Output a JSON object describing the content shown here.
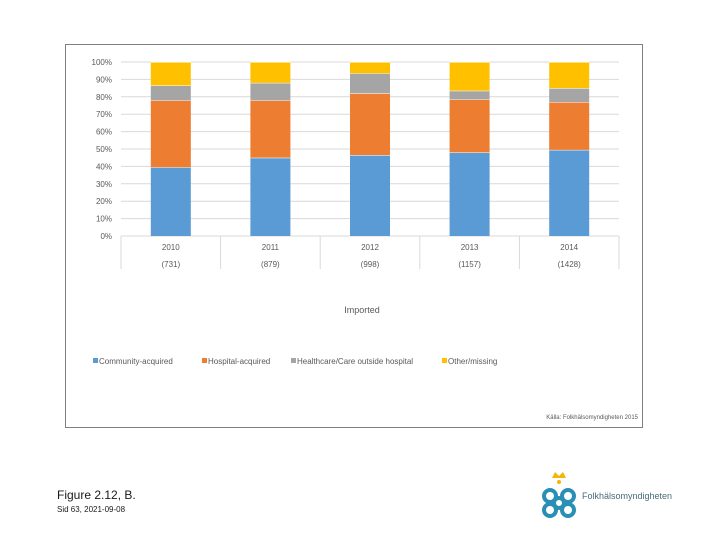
{
  "chart_data": {
    "type": "bar",
    "stacked": true,
    "percent": true,
    "title": "",
    "xlabel": "Imported",
    "ylabel": "",
    "ylim": [
      0,
      100
    ],
    "y_ticks": [
      "0%",
      "10%",
      "20%",
      "30%",
      "40%",
      "50%",
      "60%",
      "70%",
      "80%",
      "90%",
      "100%"
    ],
    "categories": [
      "2010",
      "2011",
      "2012",
      "2013",
      "2014"
    ],
    "category_counts": [
      "(731)",
      "(879)",
      "(998)",
      "(1157)",
      "(1428)"
    ],
    "series": [
      {
        "name": "Community-acquired",
        "color": "#5b9bd5",
        "values": [
          39.5,
          45,
          46.5,
          48,
          49.5
        ]
      },
      {
        "name": "Hospital-acquired",
        "color": "#ed7d31",
        "values": [
          38.5,
          33,
          35.5,
          30.5,
          27.5
        ]
      },
      {
        "name": "Healthcare/Care outside hospital",
        "color": "#a5a5a5",
        "values": [
          8.5,
          10,
          11.5,
          5,
          8
        ]
      },
      {
        "name": "Other/missing",
        "color": "#ffc000",
        "values": [
          13.5,
          12,
          6.5,
          16.5,
          15
        ]
      }
    ],
    "legend_position": "bottom-left",
    "grid": true
  },
  "credit": "Källa: Folkhälsomyndigheten 2015",
  "figure_caption": "Figure 2.12, B.",
  "slide_date": "Sid 63, 2021-09-08",
  "logo": {
    "text": "Folkhälsomyndigheten",
    "colors": {
      "primary": "#2a8fb5",
      "crown": "#f2b705"
    }
  }
}
